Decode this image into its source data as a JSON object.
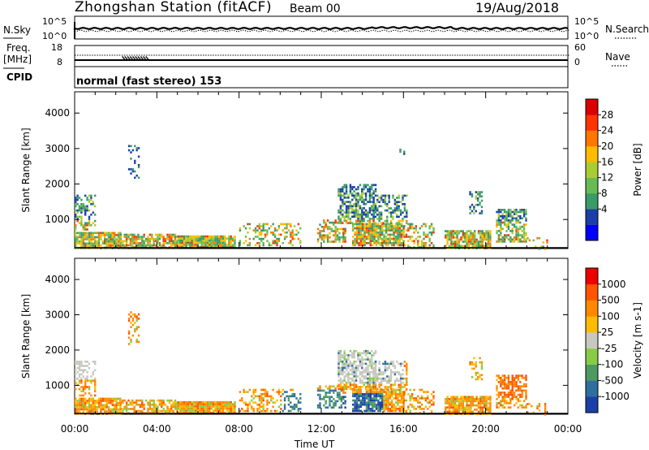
{
  "header": {
    "station": "Zhongshan Station (fitACF)",
    "beam": "Beam 00",
    "date": "19/Aug/2018"
  },
  "status_panels": {
    "nsky_label": "N.Sky",
    "nsky_ticks": [
      "10^5",
      "10^0"
    ],
    "nsearch_label": "N.Search",
    "nsearch_ticks": [
      "10^5",
      "10^0"
    ],
    "freq_label": "Freq.",
    "freq_unit": "[MHz]",
    "freq_ticks": [
      "18",
      "8"
    ],
    "nave_label": "Nave",
    "nave_ticks": [
      "60",
      "0"
    ],
    "cpid_label": "CPID",
    "cpid_value": "normal (fast stereo) 153"
  },
  "chart_data": [
    {
      "type": "heatmap",
      "name_hint": "power",
      "ylabel": "Slant Range [km]",
      "yticks": [
        1000,
        2000,
        3000,
        4000
      ],
      "ylim": [
        180,
        4600
      ],
      "xticks": [
        "00:00",
        "04:00",
        "08:00",
        "12:00",
        "16:00",
        "20:00",
        "00:00"
      ],
      "xlim_hours": [
        0,
        24
      ],
      "colorbar": {
        "label": "Power [dB]",
        "ticks": [
          28,
          24,
          20,
          16,
          12,
          8,
          4
        ],
        "range": [
          0,
          30
        ],
        "colors": [
          "#0000ff",
          "#1b3fa8",
          "#3a9a68",
          "#66bb55",
          "#aacc33",
          "#ffbb00",
          "#ff7700",
          "#ff3300",
          "#dd0000"
        ]
      }
    },
    {
      "type": "heatmap",
      "name_hint": "velocity",
      "ylabel": "Slant Range [km]",
      "yticks": [
        1000,
        2000,
        3000,
        4000
      ],
      "ylim": [
        180,
        4600
      ],
      "xticks": [
        "00:00",
        "04:00",
        "08:00",
        "12:00",
        "16:00",
        "20:00",
        "00:00"
      ],
      "xlabel": "Time UT",
      "xlim_hours": [
        0,
        24
      ],
      "colorbar": {
        "label": "Velocity [m s-1]",
        "ticks": [
          "1000",
          "500",
          "100",
          "25",
          "-25",
          "-100",
          "-500",
          "-1000"
        ],
        "colors": [
          "#1b3fa8",
          "#2e6fa0",
          "#4d9a60",
          "#88cc44",
          "#c8c8c0",
          "#ffbb00",
          "#ff8800",
          "#ff5500",
          "#ee0000"
        ]
      }
    }
  ]
}
